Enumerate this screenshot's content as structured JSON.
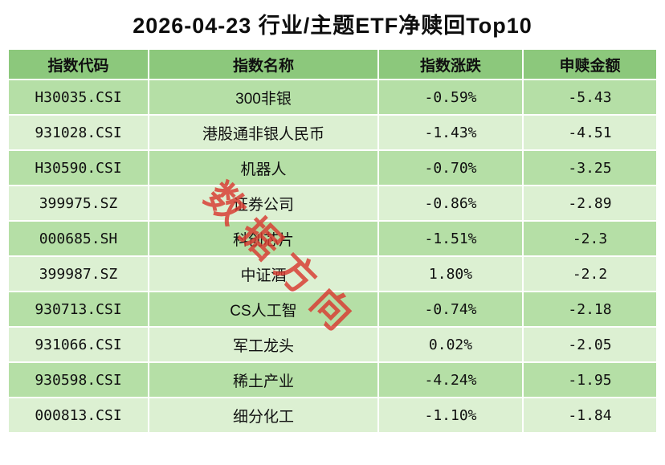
{
  "chart_data": {
    "type": "table",
    "title": "2026-04-23 行业/主题ETF净赎回Top10",
    "columns": [
      "指数代码",
      "指数名称",
      "指数涨跌",
      "申赎金额"
    ],
    "rows": [
      [
        "H30035.CSI",
        "300非银",
        "-0.59%",
        "-5.43"
      ],
      [
        "931028.CSI",
        "港股通非银人民币",
        "-1.43%",
        "-4.51"
      ],
      [
        "H30590.CSI",
        "机器人",
        "-0.70%",
        "-3.25"
      ],
      [
        "399975.SZ",
        "证券公司",
        "-0.86%",
        "-2.89"
      ],
      [
        "000685.SH",
        "科创芯片",
        "-1.51%",
        "-2.3"
      ],
      [
        "399987.SZ",
        "中证酒",
        "1.80%",
        "-2.2"
      ],
      [
        "930713.CSI",
        "CS人工智",
        "-0.74%",
        "-2.18"
      ],
      [
        "931066.CSI",
        "军工龙头",
        "0.02%",
        "-2.05"
      ],
      [
        "930598.CSI",
        "稀土产业",
        "-4.24%",
        "-1.95"
      ],
      [
        "000813.CSI",
        "细分化工",
        "-1.10%",
        "-1.84"
      ]
    ]
  },
  "watermark": "数据方向",
  "colors": {
    "header_green": "#8cc87c",
    "row_green_dark": "#b5dfa6",
    "row_green_light": "#dcf0d2",
    "watermark_red": "#d93a30",
    "text_color": "#111111"
  }
}
